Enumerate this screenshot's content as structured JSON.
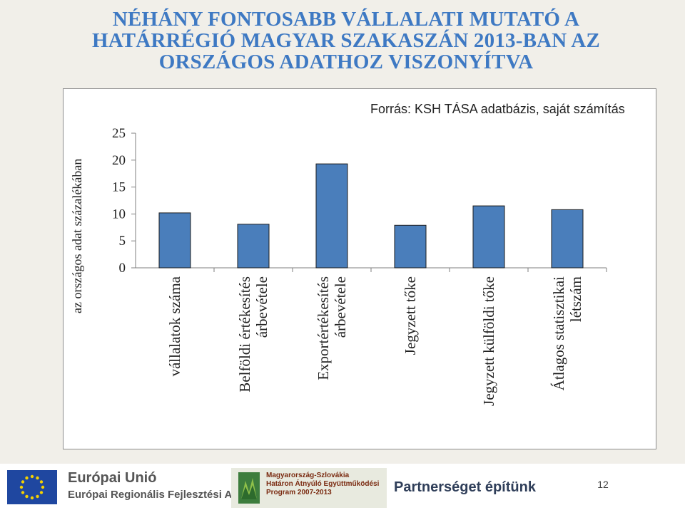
{
  "header": {
    "title_lines": [
      "NÉHÁNY FONTOSABB VÁLLALATI MUTATÓ A",
      "HATÁRRÉGIÓ MAGYAR SZAKASZÁN 2013-BAN AZ",
      "ORSZÁGOS ADATHOZ VISZONYÍTVA"
    ]
  },
  "chart_data": {
    "type": "bar",
    "source_note": "Forrás: KSH TÁSA adatbázis, saját számítás",
    "ylabel": "az országos adat százalékában",
    "ylim": [
      0,
      25
    ],
    "yticks": [
      0,
      5,
      10,
      15,
      20,
      25
    ],
    "categories": [
      [
        "vállalatok száma"
      ],
      [
        "Belföldi értékesítés",
        "árbevétele"
      ],
      [
        "Exportértékesítés",
        "árbevétele"
      ],
      [
        "Jegyzett tőke"
      ],
      [
        "Jegyzett külföldi tőke"
      ],
      [
        "Átlagos statisztikai",
        "létszám"
      ]
    ],
    "values": [
      10.2,
      8.1,
      19.3,
      7.9,
      11.5,
      10.8
    ],
    "bar_color": "#4a7ebb"
  },
  "footer": {
    "eu_title": "Európai Unió",
    "eu_subtitle": "Európai Regionális Fejlesztési Alap",
    "program_lines": [
      "Magyarország-Szlovákia",
      "Határon Átnyúló Együttműködési",
      "Program 2007-2013"
    ],
    "slogan": "Partnerséget építünk",
    "page_number": "12"
  }
}
